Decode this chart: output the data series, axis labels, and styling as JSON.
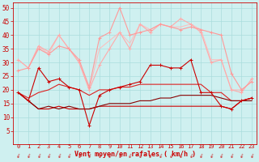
{
  "x": [
    0,
    1,
    2,
    3,
    4,
    5,
    6,
    7,
    8,
    9,
    10,
    11,
    12,
    13,
    14,
    15,
    16,
    17,
    18,
    19,
    20,
    21,
    22,
    23
  ],
  "background_color": "#cff0f0",
  "grid_color": "#aadddd",
  "xlabel": "Vent moyen/en rafales ( km/h )",
  "ylim": [
    0,
    52
  ],
  "xlim": [
    -0.5,
    23.5
  ],
  "yticks": [
    5,
    10,
    15,
    20,
    25,
    30,
    35,
    40,
    45,
    50
  ],
  "lines": [
    {
      "y": [
        19,
        16,
        28,
        23,
        24,
        21,
        20,
        7,
        18,
        20,
        21,
        22,
        23,
        29,
        29,
        28,
        28,
        31,
        19,
        19,
        14,
        13,
        16,
        17
      ],
      "color": "#cc0000",
      "lw": 0.8,
      "marker": "+",
      "ms": 3,
      "zorder": 5
    },
    {
      "y": [
        19,
        16,
        13,
        13,
        14,
        13,
        13,
        13,
        14,
        14,
        14,
        14,
        14,
        14,
        14,
        14,
        14,
        14,
        14,
        14,
        14,
        13,
        16,
        17
      ],
      "color": "#cc0000",
      "lw": 0.8,
      "marker": null,
      "ms": 0,
      "zorder": 4
    },
    {
      "y": [
        19,
        16,
        13,
        14,
        13,
        14,
        13,
        13,
        14,
        15,
        15,
        15,
        16,
        16,
        17,
        17,
        18,
        18,
        18,
        18,
        17,
        16,
        16,
        16
      ],
      "color": "#880000",
      "lw": 0.8,
      "marker": null,
      "ms": 0,
      "zorder": 4
    },
    {
      "y": [
        19,
        17,
        19,
        20,
        22,
        21,
        20,
        18,
        20,
        20,
        21,
        21,
        22,
        22,
        22,
        22,
        22,
        22,
        22,
        19,
        19,
        16,
        16,
        17
      ],
      "color": "#dd2222",
      "lw": 0.8,
      "marker": null,
      "ms": 0,
      "zorder": 3
    },
    {
      "y": [
        31,
        28,
        36,
        34,
        40,
        35,
        30,
        20,
        29,
        35,
        41,
        35,
        44,
        41,
        44,
        43,
        46,
        44,
        41,
        30,
        31,
        20,
        19,
        24
      ],
      "color": "#ffaaaa",
      "lw": 0.8,
      "marker": "+",
      "ms": 3,
      "zorder": 5
    },
    {
      "y": [
        27,
        28,
        35,
        33,
        36,
        35,
        31,
        21,
        39,
        41,
        50,
        40,
        41,
        42,
        44,
        43,
        42,
        43,
        42,
        41,
        40,
        26,
        20,
        23
      ],
      "color": "#ff9999",
      "lw": 0.8,
      "marker": "+",
      "ms": 3,
      "zorder": 5
    },
    {
      "y": [
        31,
        28,
        36,
        33,
        40,
        35,
        30,
        20,
        35,
        38,
        41,
        37,
        44,
        42,
        44,
        43,
        43,
        44,
        42,
        31,
        31,
        20,
        20,
        23
      ],
      "color": "#ffbbbb",
      "lw": 0.7,
      "marker": null,
      "ms": 0,
      "zorder": 2
    }
  ],
  "arrow_color": "#cc0000",
  "tick_color": "#cc0000",
  "axis_color": "#cc0000",
  "xlabel_fontsize": 6,
  "tick_fontsize_x": 5,
  "tick_fontsize_y": 5.5
}
